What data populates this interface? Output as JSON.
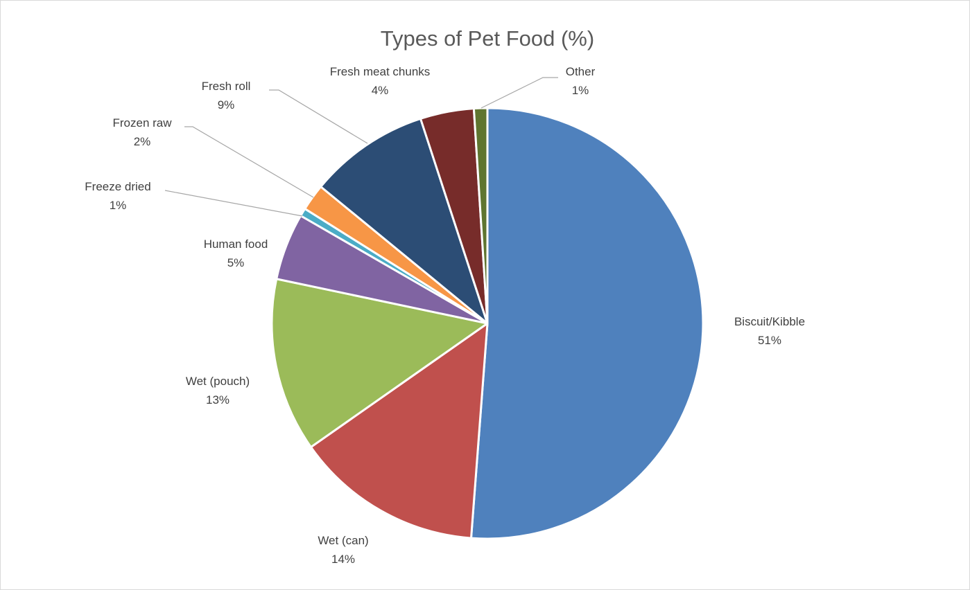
{
  "chart_data": {
    "type": "pie",
    "title": "Types of Pet Food (%)",
    "slices": [
      {
        "label": "Biscuit/Kibble",
        "value": 51,
        "display": "51%",
        "color": "#4F81BD"
      },
      {
        "label": "Wet (can)",
        "value": 14,
        "display": "14%",
        "color": "#C0504D"
      },
      {
        "label": "Wet (pouch)",
        "value": 13,
        "display": "13%",
        "color": "#9BBB59"
      },
      {
        "label": "Human food",
        "value": 5,
        "display": "5%",
        "color": "#8064A2"
      },
      {
        "label": "Freeze dried",
        "value": 0.6,
        "display": "1%",
        "color": "#4BACC6"
      },
      {
        "label": "Frozen raw",
        "value": 2,
        "display": "2%",
        "color": "#F79646"
      },
      {
        "label": "Fresh roll",
        "value": 9,
        "display": "9%",
        "color": "#2C4D75"
      },
      {
        "label": "Fresh meat chunks",
        "value": 4,
        "display": "4%",
        "color": "#772C2A"
      },
      {
        "label": "Other",
        "value": 1,
        "display": "1%",
        "color": "#5F7530"
      }
    ],
    "start_angle_deg": 0,
    "direction": "clockwise",
    "legend": "none",
    "data_labels": "category-and-percent"
  }
}
